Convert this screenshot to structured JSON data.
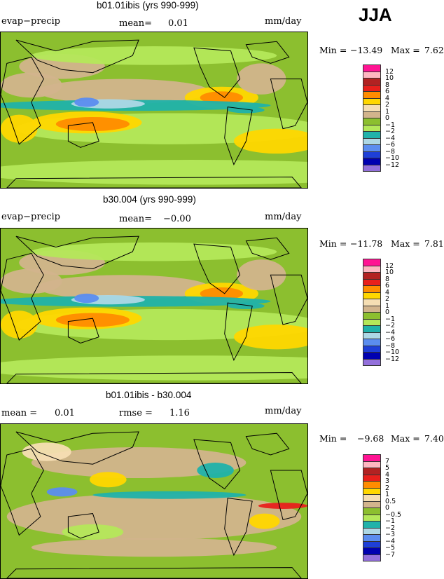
{
  "season": "JJA",
  "colors": {
    "land_outline": "#000000",
    "ocean_bg": "#8cbf2f"
  },
  "panels": [
    {
      "title": "b01.01ibis (yrs 990-999)",
      "left_label": "evap−precip",
      "mean_label": "mean=",
      "mean_value": "0.01",
      "units": "mm/day",
      "min_label": "Min =",
      "min_value": "−13.49",
      "max_label": "Max =",
      "max_value": "7.62",
      "legend": {
        "labels": [
          "12",
          "10",
          "8",
          "6",
          "4",
          "2",
          "1",
          "0",
          "−1",
          "−2",
          "−4",
          "−6",
          "−8",
          "−10",
          "−12"
        ],
        "colors": [
          "#ff1493",
          "#ffb6c1",
          "#b22222",
          "#e8201c",
          "#ff8c00",
          "#ffd700",
          "#f5deb3",
          "#d2b48c",
          "#f5f5c8",
          "#8cbf2f",
          "#b4e85a",
          "#20b2aa",
          "#add8e6",
          "#5b8def",
          "#1e3fd8",
          "#0000b0",
          "#9370db"
        ]
      }
    },
    {
      "title": "b30.004 (yrs 990-999)",
      "left_label": "evap−precip",
      "mean_label": "mean=",
      "mean_value": "−0.00",
      "units": "mm/day",
      "min_label": "Min =",
      "min_value": "−11.78",
      "max_label": "Max =",
      "max_value": "7.81",
      "legend": {
        "labels": [
          "12",
          "10",
          "8",
          "6",
          "4",
          "2",
          "1",
          "0",
          "−1",
          "−2",
          "−4",
          "−6",
          "−8",
          "−10",
          "−12"
        ],
        "colors": [
          "#ff1493",
          "#ffb6c1",
          "#b22222",
          "#e8201c",
          "#ff8c00",
          "#ffd700",
          "#f5deb3",
          "#d2b48c",
          "#f5f5c8",
          "#8cbf2f",
          "#b4e85a",
          "#20b2aa",
          "#add8e6",
          "#5b8def",
          "#1e3fd8",
          "#0000b0",
          "#9370db"
        ]
      }
    },
    {
      "title": "b01.01ibis - b30.004",
      "left_label": "mean =",
      "mean_label": "rmse =",
      "left_value": "0.01",
      "mean_value": "1.16",
      "units": "mm/day",
      "min_label": "Min =",
      "min_value": "−9.68",
      "max_label": "Max =",
      "max_value": "7.40",
      "legend": {
        "labels": [
          "7",
          "5",
          "4",
          "3",
          "2",
          "1",
          "0.5",
          "0",
          "−0.5",
          "−1",
          "−2",
          "−3",
          "−4",
          "−5",
          "−7"
        ],
        "colors": [
          "#ff1493",
          "#ffb6c1",
          "#b22222",
          "#e8201c",
          "#ff8c00",
          "#ffd700",
          "#f5deb3",
          "#d2b48c",
          "#f5f5c8",
          "#8cbf2f",
          "#b4e85a",
          "#20b2aa",
          "#add8e6",
          "#5b8def",
          "#1e3fd8",
          "#0000b0",
          "#9370db"
        ]
      }
    }
  ]
}
